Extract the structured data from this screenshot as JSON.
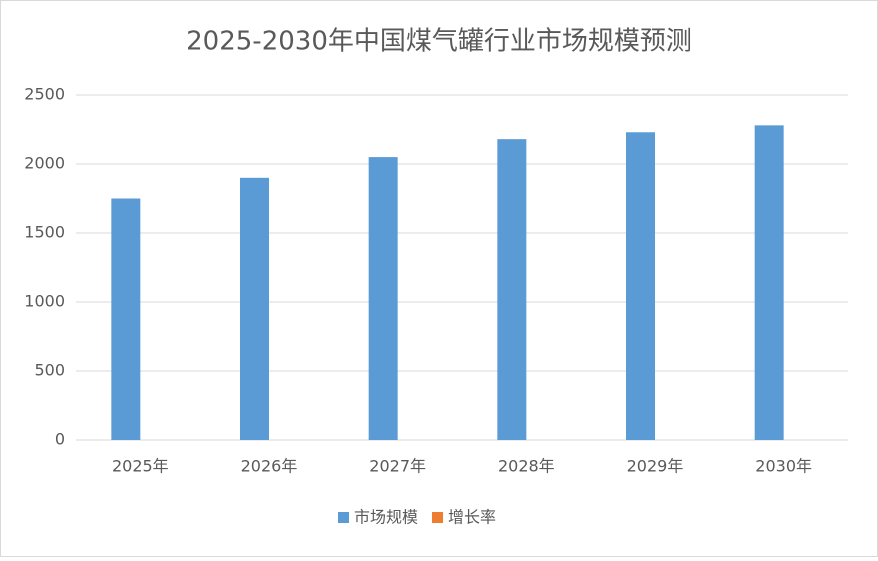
{
  "chart_data": {
    "type": "bar",
    "title": "2025-2030年中国煤气罐行业市场规模预测",
    "categories": [
      "2025年",
      "2026年",
      "2027年",
      "2028年",
      "2029年",
      "2030年"
    ],
    "series": [
      {
        "name": "市场规模",
        "color": "#5b9bd5",
        "values": [
          1750,
          1900,
          2050,
          2180,
          2230,
          2280
        ]
      },
      {
        "name": "增长率",
        "color": "#ed7d31",
        "values": [
          0,
          0,
          0,
          0,
          0,
          0
        ]
      }
    ],
    "ylim": [
      0,
      2500
    ],
    "yticks": [
      0,
      500,
      1000,
      1500,
      2000,
      2500
    ],
    "grid": true,
    "legend": "bottom"
  }
}
